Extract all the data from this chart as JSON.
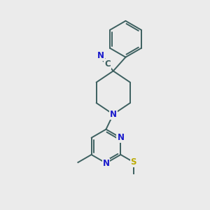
{
  "bg_color": "#ebebeb",
  "bond_color": "#3d6060",
  "bond_width": 1.4,
  "atom_colors": {
    "N": "#1a1acc",
    "S": "#bbaa00",
    "C": "#3d6060"
  },
  "font_size": 8.5
}
